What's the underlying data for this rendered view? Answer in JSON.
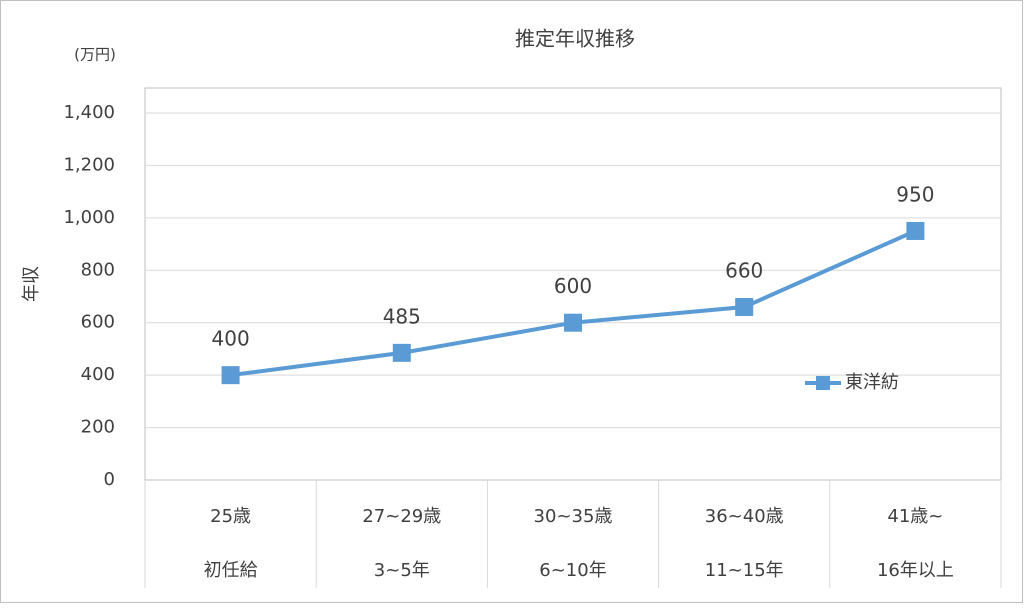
{
  "chart_data": {
    "type": "line",
    "title": "推定年収推移",
    "y_unit": "(万円)",
    "y_label": "年収",
    "categories": [
      "25歳",
      "27~29歳",
      "30~35歳",
      "36~40歳",
      "41歳~"
    ],
    "sub_categories": [
      "初任給",
      "3~5年",
      "6~10年",
      "11~15年",
      "16年以上"
    ],
    "series": [
      {
        "name": "東洋紡",
        "color": "#5b9bd5",
        "values": [
          400,
          485,
          600,
          660,
          950
        ]
      }
    ],
    "ylim": [
      0,
      1400
    ],
    "yticks": [
      0,
      200,
      400,
      600,
      800,
      {
        "value": 1000,
        "label": "1,000"
      },
      {
        "value": 1200,
        "label": "1,200"
      },
      {
        "value": 1400,
        "label": "1,400"
      }
    ],
    "grid": true,
    "legend": "right"
  }
}
